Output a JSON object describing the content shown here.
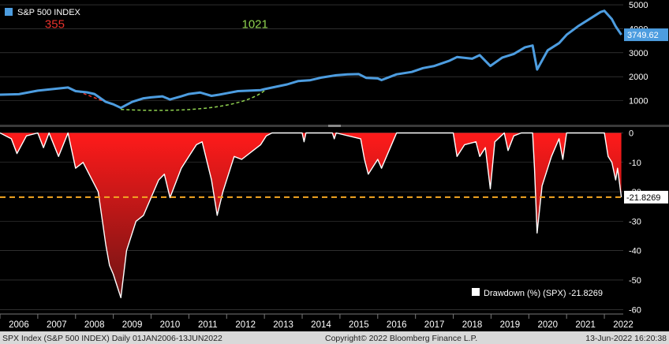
{
  "chart_data": [
    {
      "type": "line",
      "legend": "S&P 500 INDEX",
      "last_value_label": "3749.62",
      "y_ticks": [
        "5000",
        "4000",
        "3000",
        "2000",
        "1000"
      ],
      "y_tick_values": [
        5000,
        4000,
        3000,
        2000,
        1000
      ],
      "ylim": [
        0,
        5200
      ],
      "annotations": [
        {
          "text": "355",
          "color": "#e8322c"
        },
        {
          "text": "1021",
          "color": "#8fd14f"
        }
      ],
      "x": [
        2006.0,
        2006.5,
        2007.0,
        2007.5,
        2007.8,
        2008.0,
        2008.3,
        2008.5,
        2008.8,
        2009.0,
        2009.2,
        2009.5,
        2009.8,
        2010.0,
        2010.3,
        2010.5,
        2010.8,
        2011.0,
        2011.3,
        2011.6,
        2011.8,
        2012.0,
        2012.3,
        2012.6,
        2012.9,
        2013.0,
        2013.3,
        2013.6,
        2013.9,
        2014.2,
        2014.5,
        2014.9,
        2015.2,
        2015.5,
        2015.7,
        2016.0,
        2016.1,
        2016.5,
        2016.9,
        2017.2,
        2017.5,
        2017.9,
        2018.1,
        2018.5,
        2018.7,
        2018.98,
        2019.3,
        2019.6,
        2019.9,
        2020.1,
        2020.22,
        2020.5,
        2020.8,
        2021.0,
        2021.3,
        2021.6,
        2021.9,
        2022.0,
        2022.2,
        2022.3,
        2022.45
      ],
      "values": [
        1250,
        1270,
        1420,
        1500,
        1550,
        1400,
        1350,
        1280,
        950,
        850,
        700,
        950,
        1100,
        1140,
        1180,
        1050,
        1180,
        1280,
        1340,
        1200,
        1250,
        1310,
        1400,
        1420,
        1440,
        1480,
        1580,
        1680,
        1820,
        1850,
        1960,
        2060,
        2100,
        2110,
        1950,
        1930,
        1860,
        2100,
        2200,
        2360,
        2450,
        2670,
        2820,
        2750,
        2900,
        2450,
        2800,
        2950,
        3230,
        3300,
        2300,
        3100,
        3400,
        3750,
        4100,
        4400,
        4700,
        4750,
        4400,
        4100,
        3750
      ]
    },
    {
      "type": "area",
      "legend": "Drawdown (%) (SPX) -21.8269",
      "last_value_label": "-21.8269",
      "y_ticks": [
        "0",
        "-10",
        "-20",
        "-30",
        "-40",
        "-50",
        "-60"
      ],
      "y_tick_values": [
        0,
        -10,
        -20,
        -30,
        -40,
        -50,
        -60
      ],
      "ylim": [
        -61,
        2
      ],
      "reference_line": -21.8269,
      "x": [
        2006.0,
        2006.3,
        2006.45,
        2006.7,
        2007.0,
        2007.15,
        2007.3,
        2007.55,
        2007.8,
        2008.0,
        2008.2,
        2008.4,
        2008.6,
        2008.8,
        2008.9,
        2009.0,
        2009.1,
        2009.2,
        2009.35,
        2009.6,
        2009.8,
        2010.0,
        2010.2,
        2010.35,
        2010.5,
        2010.8,
        2011.0,
        2011.2,
        2011.35,
        2011.6,
        2011.75,
        2011.9,
        2012.2,
        2012.4,
        2012.7,
        2012.9,
        2013.05,
        2013.2,
        2013.3,
        2014.0,
        2014.05,
        2014.1,
        2014.8,
        2014.85,
        2014.9,
        2015.55,
        2015.65,
        2015.75,
        2016.0,
        2016.1,
        2016.4,
        2016.5,
        2017.0,
        2018.0,
        2018.1,
        2018.3,
        2018.6,
        2018.7,
        2018.85,
        2018.98,
        2019.1,
        2019.35,
        2019.45,
        2019.6,
        2019.8,
        2020.1,
        2020.15,
        2020.22,
        2020.35,
        2020.6,
        2020.8,
        2020.9,
        2021.0,
        2022.0,
        2022.1,
        2022.2,
        2022.3,
        2022.35,
        2022.45
      ],
      "values": [
        0,
        -2,
        -7,
        -1,
        0,
        -5,
        0,
        -8,
        0,
        -12,
        -10,
        -15,
        -20,
        -38,
        -45,
        -48,
        -52,
        -56,
        -40,
        -30,
        -28,
        -22,
        -16,
        -14,
        -22,
        -12,
        -8,
        -4,
        -3,
        -16,
        -28,
        -20,
        -8,
        -9,
        -6,
        -4,
        -1,
        0,
        0,
        0,
        -3,
        0,
        0,
        -2,
        0,
        -2,
        -9,
        -14,
        -9,
        -12,
        -3,
        0,
        0,
        0,
        -8,
        -4,
        -3,
        -8,
        -5,
        -19,
        -3,
        0,
        -6,
        -1,
        0,
        0,
        -12,
        -34,
        -18,
        -8,
        -2,
        -9,
        0,
        0,
        -8,
        -10,
        -16,
        -12,
        -21.8269
      ]
    }
  ],
  "x_ticks": [
    "2006",
    "2007",
    "2008",
    "2009",
    "2010",
    "2011",
    "2012",
    "2013",
    "2014",
    "2015",
    "2016",
    "2017",
    "2018",
    "2019",
    "2020",
    "2021",
    "2022"
  ],
  "footer": {
    "left": "SPX Index (S&P 500 INDEX)  Daily 01JAN2006-13JUN2022",
    "center": "Copyright© 2022 Bloomberg Finance L.P.",
    "right": "13-Jun-2022 16:20:38"
  },
  "colors": {
    "price_line": "#4d9de0",
    "drawdown_fill_top": "#ff1a1a",
    "drawdown_fill_bottom": "#6e1414",
    "reference_line": "#f5a623",
    "red_trend": "#e8322c",
    "green_trend": "#8fd14f"
  }
}
